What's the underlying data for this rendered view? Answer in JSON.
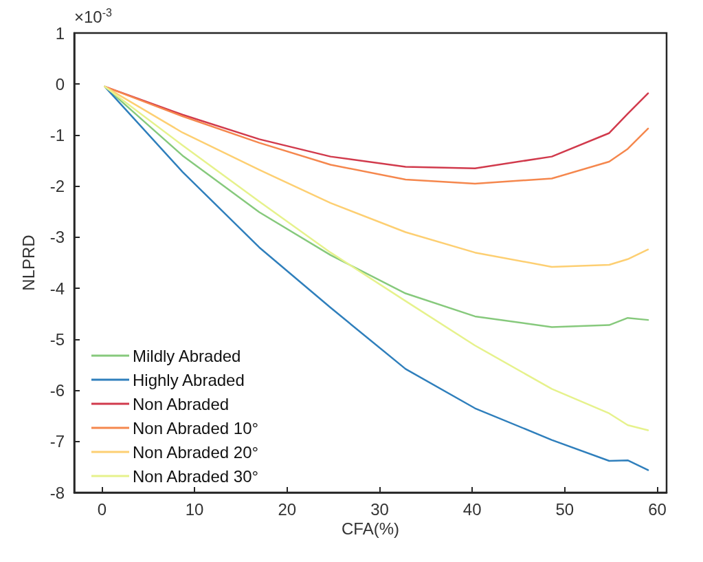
{
  "chart_data": {
    "type": "line",
    "xlabel": "CFA(%)",
    "ylabel": "NLPRD",
    "annotations": [
      "×10$^{-3}$"
    ],
    "x": [
      0.3,
      8.7,
      17,
      24.7,
      32.8,
      40.3,
      48.6,
      54.8,
      56.8,
      59
    ],
    "xlim": [
      -3,
      61
    ],
    "xticks": [
      0,
      10,
      20,
      30,
      40,
      50,
      60
    ],
    "ylim": [
      -8,
      1
    ],
    "yticks": [
      -8,
      -7,
      -6,
      -5,
      -4,
      -3,
      -2,
      -1,
      0,
      1
    ],
    "grid": false,
    "legend": "bottom left",
    "marker": "none",
    "line_style": "solid",
    "series": [
      {
        "name": "Mildly Abraded",
        "color": "#86c97c",
        "values": [
          -0.05,
          -1.4,
          -2.51,
          -3.35,
          -4.1,
          -4.55,
          -4.76,
          -4.72,
          -4.58,
          -4.62
        ]
      },
      {
        "name": "Highly Abraded",
        "color": "#2f7fbc",
        "values": [
          -0.05,
          -1.72,
          -3.2,
          -4.38,
          -5.58,
          -6.35,
          -6.97,
          -7.38,
          -7.37,
          -7.56
        ]
      },
      {
        "name": "Non Abraded",
        "color": "#d13a4c",
        "values": [
          -0.05,
          -0.6,
          -1.08,
          -1.42,
          -1.62,
          -1.65,
          -1.42,
          -0.96,
          -0.58,
          -0.18
        ]
      },
      {
        "name": "Non Abraded 10°",
        "color": "#f5874d",
        "values": [
          -0.05,
          -0.63,
          -1.15,
          -1.58,
          -1.87,
          -1.95,
          -1.85,
          -1.52,
          -1.27,
          -0.87
        ]
      },
      {
        "name": "Non Abraded 20°",
        "color": "#fdcf72",
        "values": [
          -0.05,
          -0.95,
          -1.68,
          -2.33,
          -2.9,
          -3.3,
          -3.58,
          -3.54,
          -3.43,
          -3.24
        ]
      },
      {
        "name": "Non Abraded 30°",
        "color": "#e6f28c",
        "values": [
          -0.05,
          -1.2,
          -2.3,
          -3.3,
          -4.25,
          -5.12,
          -5.97,
          -6.45,
          -6.68,
          -6.78
        ]
      }
    ]
  }
}
